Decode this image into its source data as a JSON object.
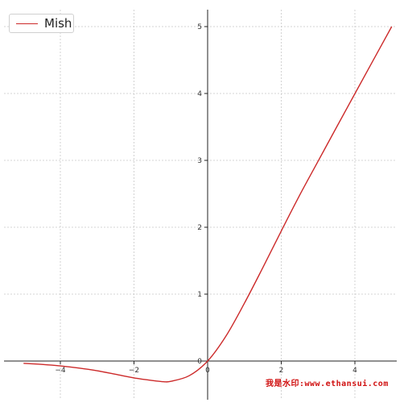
{
  "chart_data": {
    "type": "line",
    "title": "",
    "xlabel": "",
    "ylabel": "",
    "xlim": [
      -5,
      5
    ],
    "ylim": [
      -0.5,
      5.3
    ],
    "x_ticks": [
      {
        "value": -4,
        "label": "−4"
      },
      {
        "value": -2,
        "label": "−2"
      },
      {
        "value": 0,
        "label": "0"
      },
      {
        "value": 2,
        "label": "2"
      },
      {
        "value": 4,
        "label": "4"
      }
    ],
    "y_ticks": [
      {
        "value": 0,
        "label": "0"
      },
      {
        "value": 1,
        "label": "1"
      },
      {
        "value": 2,
        "label": "2"
      },
      {
        "value": 3,
        "label": "3"
      },
      {
        "value": 4,
        "label": "4"
      },
      {
        "value": 5,
        "label": "5"
      }
    ],
    "grid": true,
    "legend_position": "top-left",
    "series": [
      {
        "name": "Mish",
        "color": "#cc2a2a",
        "x": [
          -5,
          -4.5,
          -4,
          -3.5,
          -3,
          -2.5,
          -2,
          -1.5,
          -1.19,
          -1,
          -0.5,
          0,
          0.5,
          1,
          1.5,
          2,
          2.5,
          3,
          3.5,
          4,
          4.5,
          5
        ],
        "y": [
          -0.034,
          -0.05,
          -0.073,
          -0.105,
          -0.146,
          -0.198,
          -0.252,
          -0.291,
          -0.309,
          -0.303,
          -0.219,
          0,
          0.375,
          0.865,
          1.397,
          1.944,
          2.48,
          2.987,
          3.494,
          3.997,
          4.499,
          5.0
        ]
      }
    ]
  },
  "watermark_text": "我是水印:www.ethansui.com"
}
